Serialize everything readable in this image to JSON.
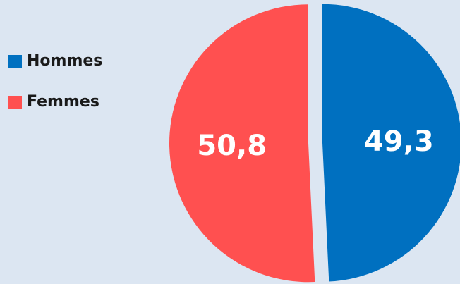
{
  "chart_data": {
    "type": "pie",
    "categories": [
      "Hommes",
      "Femmes"
    ],
    "values": [
      49.3,
      50.8
    ],
    "value_labels": [
      "49,3",
      "50,8"
    ],
    "colors": [
      "#0070c0",
      "#ff5050"
    ],
    "exploded": true,
    "legend": {
      "placement": "left",
      "entries": [
        "Hommes",
        "Femmes"
      ]
    }
  }
}
